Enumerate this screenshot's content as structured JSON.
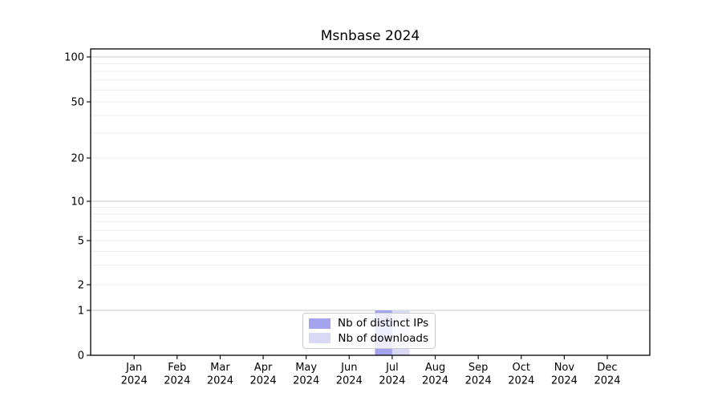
{
  "title": "Msnbase 2024",
  "chart_data": {
    "type": "bar",
    "title": "Msnbase 2024",
    "categories": [
      "Jan 2024",
      "Feb 2024",
      "Mar 2024",
      "Apr 2024",
      "May 2024",
      "Jun 2024",
      "Jul 2024",
      "Aug 2024",
      "Sep 2024",
      "Oct 2024",
      "Nov 2024",
      "Dec 2024"
    ],
    "series": [
      {
        "name": "Nb of distinct IPs",
        "color": "#a3a3ee",
        "values": [
          0,
          0,
          0,
          0,
          0,
          0,
          1,
          0,
          0,
          0,
          0,
          0
        ]
      },
      {
        "name": "Nb of downloads",
        "color": "#d9d9f6",
        "values": [
          0,
          0,
          0,
          0,
          0,
          0,
          1,
          0,
          0,
          0,
          0,
          0
        ]
      }
    ],
    "xlabel": "",
    "ylabel": "",
    "yscale": "symlog",
    "ytick_labels": [
      "0",
      "1",
      "2",
      "5",
      "10",
      "20",
      "50",
      "100"
    ],
    "ytick_values": [
      0,
      1,
      2,
      5,
      10,
      20,
      50,
      100
    ],
    "ylim": [
      0,
      115
    ],
    "grid": "horizontal",
    "legend_position": "lower center",
    "colors": {
      "major_gridline": "#c9c9c9",
      "minor_gridline": "#ececec",
      "spine": "#000000",
      "text": "#000000"
    }
  }
}
